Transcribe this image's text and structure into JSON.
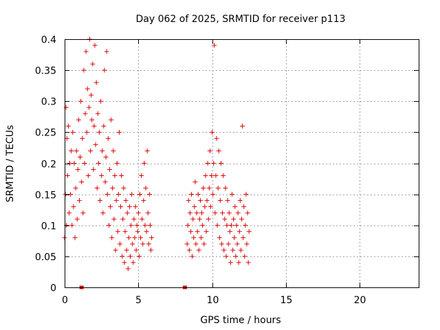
{
  "chart_data": {
    "type": "scatter",
    "title": "Day 062 of 2025, SRMTID for receiver p113",
    "xlabel": "GPS time / hours",
    "ylabel": "SRMTID / TECUs",
    "xlim": [
      0,
      24
    ],
    "ylim": [
      0,
      0.4
    ],
    "x_ticks": [
      0,
      5,
      10,
      15,
      20
    ],
    "x_tick_labels": [
      "0",
      "5",
      "10",
      "15",
      "20"
    ],
    "y_ticks": [
      0,
      0.05,
      0.1,
      0.15,
      0.2,
      0.25,
      0.3,
      0.35,
      0.4
    ],
    "y_tick_labels": [
      "0",
      "0.05",
      "0.1",
      "0.15",
      "0.2",
      "0.25",
      "0.3",
      "0.35",
      "0.4"
    ],
    "grid": true,
    "marker": "plus",
    "color": "#dd0000",
    "series": [
      {
        "name": "SRMTID",
        "points": [
          [
            0.0,
            0.08
          ],
          [
            0.05,
            0.15
          ],
          [
            0.1,
            0.29
          ],
          [
            0.12,
            0.1
          ],
          [
            0.15,
            0.24
          ],
          [
            0.2,
            0.18
          ],
          [
            0.25,
            0.26
          ],
          [
            0.3,
            0.12
          ],
          [
            0.35,
            0.2
          ],
          [
            0.4,
            0.15
          ],
          [
            0.45,
            0.22
          ],
          [
            0.5,
            0.1
          ],
          [
            0.55,
            0.25
          ],
          [
            0.6,
            0.13
          ],
          [
            0.65,
            0.2
          ],
          [
            0.7,
            0.08
          ],
          [
            0.75,
            0.16
          ],
          [
            0.8,
            0.22
          ],
          [
            0.85,
            0.11
          ],
          [
            0.9,
            0.19
          ],
          [
            0.95,
            0.27
          ],
          [
            1.0,
            0.14
          ],
          [
            1.05,
            0.21
          ],
          [
            1.1,
            0.3
          ],
          [
            1.15,
            0.17
          ],
          [
            1.2,
            0.24
          ],
          [
            1.25,
            0.12
          ],
          [
            1.3,
            0.35
          ],
          [
            1.35,
            0.2
          ],
          [
            1.4,
            0.28
          ],
          [
            1.45,
            0.38
          ],
          [
            1.5,
            0.25
          ],
          [
            1.55,
            0.32
          ],
          [
            1.6,
            0.18
          ],
          [
            1.65,
            0.29
          ],
          [
            1.7,
            0.4
          ],
          [
            1.75,
            0.22
          ],
          [
            1.8,
            0.31
          ],
          [
            1.85,
            0.27
          ],
          [
            1.9,
            0.36
          ],
          [
            1.95,
            0.19
          ],
          [
            2.0,
            0.26
          ],
          [
            2.05,
            0.39
          ],
          [
            2.1,
            0.23
          ],
          [
            2.15,
            0.33
          ],
          [
            2.2,
            0.16
          ],
          [
            2.25,
            0.28
          ],
          [
            2.3,
            0.2
          ],
          [
            2.35,
            0.25
          ],
          [
            2.4,
            0.14
          ],
          [
            2.45,
            0.3
          ],
          [
            2.5,
            0.18
          ],
          [
            2.55,
            0.22
          ],
          [
            2.6,
            0.12
          ],
          [
            2.65,
            0.26
          ],
          [
            2.7,
            0.35
          ],
          [
            2.75,
            0.17
          ],
          [
            2.8,
            0.21
          ],
          [
            2.85,
            0.38
          ],
          [
            2.9,
            0.15
          ],
          [
            2.95,
            0.24
          ],
          [
            3.0,
            0.1
          ],
          [
            3.05,
            0.19
          ],
          [
            3.1,
            0.13
          ],
          [
            3.15,
            0.27
          ],
          [
            3.2,
            0.08
          ],
          [
            3.25,
            0.16
          ],
          [
            3.3,
            0.22
          ],
          [
            3.35,
            0.11
          ],
          [
            3.4,
            0.18
          ],
          [
            3.45,
            0.06
          ],
          [
            3.5,
            0.14
          ],
          [
            3.55,
            0.2
          ],
          [
            3.6,
            0.09
          ],
          [
            3.65,
            0.15
          ],
          [
            3.7,
            0.25
          ],
          [
            3.75,
            0.07
          ],
          [
            3.8,
            0.13
          ],
          [
            3.85,
            0.18
          ],
          [
            3.9,
            0.05
          ],
          [
            3.95,
            0.11
          ],
          [
            4.0,
            0.16
          ],
          [
            4.05,
            0.04
          ],
          [
            4.1,
            0.09
          ],
          [
            4.15,
            0.14
          ],
          [
            4.2,
            0.06
          ],
          [
            4.25,
            0.12
          ],
          [
            4.3,
            0.03
          ],
          [
            4.35,
            0.08
          ],
          [
            4.4,
            0.13
          ],
          [
            4.45,
            0.05
          ],
          [
            4.5,
            0.1
          ],
          [
            4.55,
            0.15
          ],
          [
            4.6,
            0.07
          ],
          [
            4.65,
            0.04
          ],
          [
            4.7,
            0.11
          ],
          [
            4.75,
            0.08
          ],
          [
            4.8,
            0.13
          ],
          [
            4.85,
            0.06
          ],
          [
            4.9,
            0.1
          ],
          [
            4.95,
            0.09
          ],
          [
            5.0,
            0.12
          ],
          [
            5.05,
            0.05
          ],
          [
            5.1,
            0.15
          ],
          [
            5.15,
            0.08
          ],
          [
            5.2,
            0.18
          ],
          [
            5.25,
            0.11
          ],
          [
            5.3,
            0.07
          ],
          [
            5.35,
            0.14
          ],
          [
            5.4,
            0.2
          ],
          [
            5.45,
            0.1
          ],
          [
            5.5,
            0.16
          ],
          [
            5.55,
            0.09
          ],
          [
            5.6,
            0.22
          ],
          [
            5.65,
            0.12
          ],
          [
            5.7,
            0.07
          ],
          [
            5.75,
            0.15
          ],
          [
            5.8,
            0.1
          ],
          [
            5.85,
            0.06
          ],
          [
            5.9,
            0.08
          ],
          [
            8.3,
            0.07
          ],
          [
            8.35,
            0.1
          ],
          [
            8.4,
            0.14
          ],
          [
            8.45,
            0.06
          ],
          [
            8.5,
            0.12
          ],
          [
            8.55,
            0.09
          ],
          [
            8.6,
            0.15
          ],
          [
            8.65,
            0.05
          ],
          [
            8.7,
            0.11
          ],
          [
            8.75,
            0.08
          ],
          [
            8.8,
            0.13
          ],
          [
            8.85,
            0.17
          ],
          [
            8.9,
            0.07
          ],
          [
            8.95,
            0.12
          ],
          [
            9.0,
            0.09
          ],
          [
            9.05,
            0.15
          ],
          [
            9.1,
            0.06
          ],
          [
            9.15,
            0.11
          ],
          [
            9.2,
            0.14
          ],
          [
            9.25,
            0.08
          ],
          [
            9.3,
            0.12
          ],
          [
            9.35,
            0.1
          ],
          [
            9.4,
            0.16
          ],
          [
            9.45,
            0.07
          ],
          [
            9.5,
            0.13
          ],
          [
            9.55,
            0.18
          ],
          [
            9.6,
            0.09
          ],
          [
            9.65,
            0.14
          ],
          [
            9.7,
            0.2
          ],
          [
            9.75,
            0.11
          ],
          [
            9.8,
            0.16
          ],
          [
            9.85,
            0.22
          ],
          [
            9.9,
            0.13
          ],
          [
            9.95,
            0.18
          ],
          [
            10.0,
            0.25
          ],
          [
            10.05,
            0.15
          ],
          [
            10.1,
            0.2
          ],
          [
            10.15,
            0.39
          ],
          [
            10.2,
            0.12
          ],
          [
            10.25,
            0.18
          ],
          [
            10.3,
            0.24
          ],
          [
            10.35,
            0.1
          ],
          [
            10.4,
            0.16
          ],
          [
            10.45,
            0.22
          ],
          [
            10.5,
            0.08
          ],
          [
            10.55,
            0.14
          ],
          [
            10.6,
            0.2
          ],
          [
            10.65,
            0.07
          ],
          [
            10.7,
            0.12
          ],
          [
            10.75,
            0.18
          ],
          [
            10.8,
            0.06
          ],
          [
            10.85,
            0.11
          ],
          [
            10.9,
            0.16
          ],
          [
            10.95,
            0.05
          ],
          [
            11.0,
            0.1
          ],
          [
            11.05,
            0.14
          ],
          [
            11.1,
            0.07
          ],
          [
            11.15,
            0.12
          ],
          [
            11.2,
            0.09
          ],
          [
            11.25,
            0.04
          ],
          [
            11.3,
            0.1
          ],
          [
            11.35,
            0.15
          ],
          [
            11.4,
            0.06
          ],
          [
            11.45,
            0.11
          ],
          [
            11.5,
            0.08
          ],
          [
            11.55,
            0.13
          ],
          [
            11.6,
            0.05
          ],
          [
            11.65,
            0.1
          ],
          [
            11.7,
            0.07
          ],
          [
            11.75,
            0.12
          ],
          [
            11.8,
            0.04
          ],
          [
            11.85,
            0.09
          ],
          [
            11.9,
            0.14
          ],
          [
            11.95,
            0.06
          ],
          [
            12.0,
            0.11
          ],
          [
            12.05,
            0.26
          ],
          [
            12.1,
            0.08
          ],
          [
            12.15,
            0.13
          ],
          [
            12.2,
            0.05
          ],
          [
            12.25,
            0.1
          ],
          [
            12.3,
            0.15
          ],
          [
            12.35,
            0.07
          ],
          [
            12.4,
            0.12
          ],
          [
            12.45,
            0.04
          ],
          [
            12.5,
            0.09
          ]
        ]
      }
    ],
    "axis_markers": [
      1.15,
      8.15
    ]
  }
}
